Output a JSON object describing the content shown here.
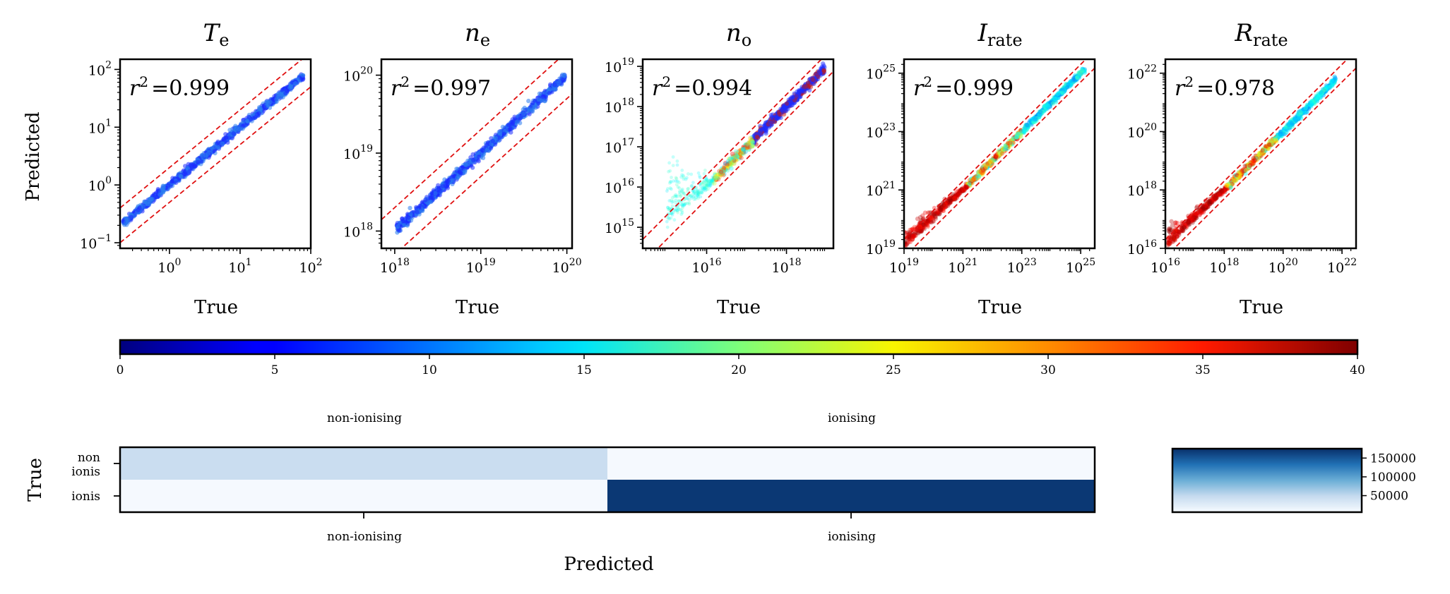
{
  "chart_data": [
    {
      "type": "scatter",
      "title": "T",
      "title_sub": "e",
      "xlabel": "True",
      "ylabel": "Predicted",
      "scale": "log",
      "xlim": [
        0.2,
        100
      ],
      "ylim": [
        0.08,
        150
      ],
      "x_ticks": [
        {
          "base": "10",
          "exp": "0",
          "v": 1
        },
        {
          "base": "10",
          "exp": "1",
          "v": 10
        },
        {
          "base": "10",
          "exp": "2",
          "v": 100
        }
      ],
      "y_ticks": [
        {
          "base": "10",
          "exp": "−1",
          "v": 0.1
        },
        {
          "base": "10",
          "exp": "0",
          "v": 1
        },
        {
          "base": "10",
          "exp": "1",
          "v": 10
        },
        {
          "base": "10",
          "exp": "2",
          "v": 100
        }
      ],
      "r2_label": "r",
      "r2_exp": "2",
      "r2_value": "=0.999",
      "data_range": [
        0.22,
        78
      ],
      "spread": 0.03,
      "colormap": "blue"
    },
    {
      "type": "scatter",
      "title": "n",
      "title_sub": "e",
      "xlabel": "True",
      "ylabel": "",
      "scale": "log",
      "xlim": [
        7e+17,
        1.15e+20
      ],
      "ylim": [
        6e+17,
        1.6e+20
      ],
      "x_ticks": [
        {
          "base": "10",
          "exp": "18",
          "v": 1e+18
        },
        {
          "base": "10",
          "exp": "19",
          "v": 1e+19
        },
        {
          "base": "10",
          "exp": "20",
          "v": 1e+20
        }
      ],
      "y_ticks": [
        {
          "base": "10",
          "exp": "18",
          "v": 1e+18
        },
        {
          "base": "10",
          "exp": "19",
          "v": 1e+19
        },
        {
          "base": "10",
          "exp": "20",
          "v": 1e+20
        }
      ],
      "r2_label": "r",
      "r2_exp": "2",
      "r2_value": "=0.997",
      "data_range": [
        1.05e+18,
        9.5e+19
      ],
      "spread": 0.03,
      "colormap": "blue"
    },
    {
      "type": "scatter",
      "title": "n",
      "title_sub": "o",
      "xlabel": "True",
      "ylabel": "",
      "scale": "log",
      "xlim": [
        250000000000000.0,
        1.5e+19
      ],
      "ylim": [
        300000000000000.0,
        1.5e+19
      ],
      "x_ticks": [
        {
          "base": "10",
          "exp": "16",
          "v": 1e+16
        },
        {
          "base": "10",
          "exp": "18",
          "v": 1e+18
        }
      ],
      "y_ticks": [
        {
          "base": "10",
          "exp": "15",
          "v": 1000000000000000.0
        },
        {
          "base": "10",
          "exp": "16",
          "v": 1e+16
        },
        {
          "base": "10",
          "exp": "17",
          "v": 1e+17
        },
        {
          "base": "10",
          "exp": "18",
          "v": 1e+18
        },
        {
          "base": "10",
          "exp": "19",
          "v": 1e+19
        }
      ],
      "r2_label": "r",
      "r2_exp": "2",
      "r2_value": "=0.994",
      "data_range": [
        1000000000000000.0,
        9e+18
      ],
      "spread": 0.06,
      "colormap": "jet-low"
    },
    {
      "type": "scatter",
      "title": "I",
      "title_sub": "rate",
      "xlabel": "True",
      "ylabel": "",
      "scale": "log",
      "xlim": [
        1e+19,
        3e+25
      ],
      "ylim": [
        1e+19,
        3e+25
      ],
      "x_ticks": [
        {
          "base": "10",
          "exp": "19",
          "v": 1e+19
        },
        {
          "base": "10",
          "exp": "21",
          "v": 1e+21
        },
        {
          "base": "10",
          "exp": "23",
          "v": 1e+23
        },
        {
          "base": "10",
          "exp": "25",
          "v": 1e+25
        }
      ],
      "y_ticks": [
        {
          "base": "10",
          "exp": "19",
          "v": 1e+19
        },
        {
          "base": "10",
          "exp": "21",
          "v": 1e+21
        },
        {
          "base": "10",
          "exp": "23",
          "v": 1e+23
        },
        {
          "base": "10",
          "exp": "25",
          "v": 1e+25
        }
      ],
      "r2_label": "r",
      "r2_exp": "2",
      "r2_value": "=0.999",
      "data_range": [
        1e+19,
        1.4e+25
      ],
      "spread": 0.05,
      "colormap": "jet-high"
    },
    {
      "type": "scatter",
      "title": "R",
      "title_sub": "rate",
      "xlabel": "True",
      "ylabel": "",
      "scale": "log",
      "xlim": [
        1e+16,
        3e+22
      ],
      "ylim": [
        1e+16,
        3e+22
      ],
      "x_ticks": [
        {
          "base": "10",
          "exp": "16",
          "v": 1e+16
        },
        {
          "base": "10",
          "exp": "18",
          "v": 1e+18
        },
        {
          "base": "10",
          "exp": "20",
          "v": 1e+20
        },
        {
          "base": "10",
          "exp": "22",
          "v": 1e+22
        }
      ],
      "y_ticks": [
        {
          "base": "10",
          "exp": "16",
          "v": 1e+16
        },
        {
          "base": "10",
          "exp": "18",
          "v": 1e+18
        },
        {
          "base": "10",
          "exp": "20",
          "v": 1e+20
        },
        {
          "base": "10",
          "exp": "22",
          "v": 1e+22
        }
      ],
      "r2_label": "r",
      "r2_exp": "2",
      "r2_value": "=0.978",
      "data_range": [
        1.2e+16,
        6e+21
      ],
      "spread": 0.05,
      "colormap": "jet-high"
    },
    {
      "type": "colorbar",
      "colormap": "jet",
      "range": [
        0,
        40
      ],
      "ticks": [
        0,
        5,
        10,
        15,
        20,
        25,
        30,
        35,
        40
      ],
      "labels": [
        "0",
        "5",
        "10",
        "15",
        "20",
        "25",
        "30",
        "35",
        "40"
      ],
      "class_labels": [
        "non-ionising",
        "ionising"
      ]
    },
    {
      "type": "heatmap",
      "xlabel": "Predicted",
      "ylabel": "True",
      "x_categories": [
        "non-ionising",
        "ionising"
      ],
      "y_tick_labels": [
        [
          "non",
          "ionis"
        ],
        [
          "ionis"
        ]
      ],
      "values": [
        [
          45000,
          8000
        ],
        [
          8000,
          170000
        ]
      ],
      "colorbar": {
        "colormap": "Blues",
        "ticks": [
          50000,
          100000,
          150000
        ],
        "labels": [
          "50000",
          "100000",
          "150000"
        ],
        "range": [
          6000,
          175000
        ]
      }
    }
  ]
}
